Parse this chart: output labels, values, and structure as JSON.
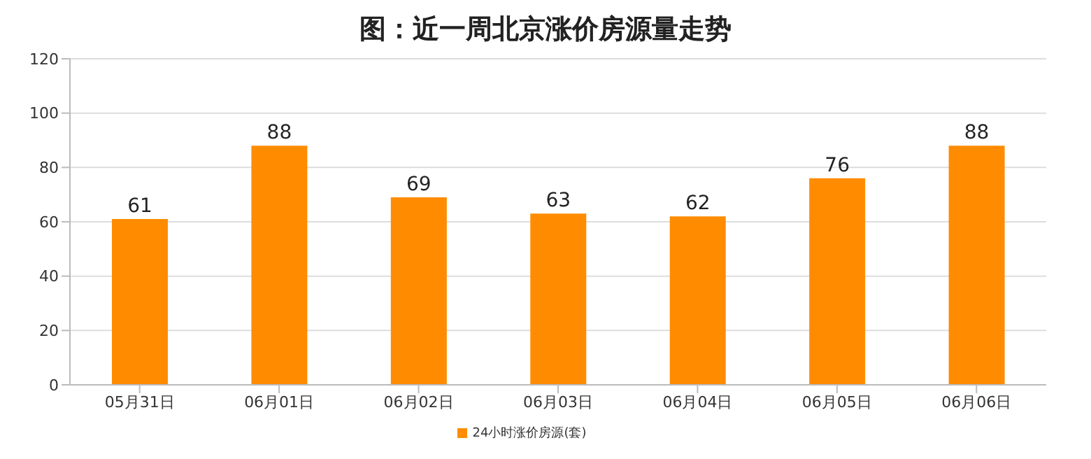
{
  "chart_data": {
    "type": "bar",
    "title": "图：近一周北京涨价房源量走势",
    "categories": [
      "05月31日",
      "06月01日",
      "06月02日",
      "06月03日",
      "06月04日",
      "06月05日",
      "06月06日"
    ],
    "series": [
      {
        "name": "24小时涨价房源(套)",
        "color": "#ff8c00",
        "values": [
          61,
          88,
          69,
          63,
          62,
          76,
          88
        ]
      }
    ],
    "ylim": [
      0,
      120
    ],
    "yticks": [
      0,
      20,
      40,
      60,
      80,
      100,
      120
    ],
    "grid": "y",
    "legend": "bottom",
    "data_labels": true
  }
}
